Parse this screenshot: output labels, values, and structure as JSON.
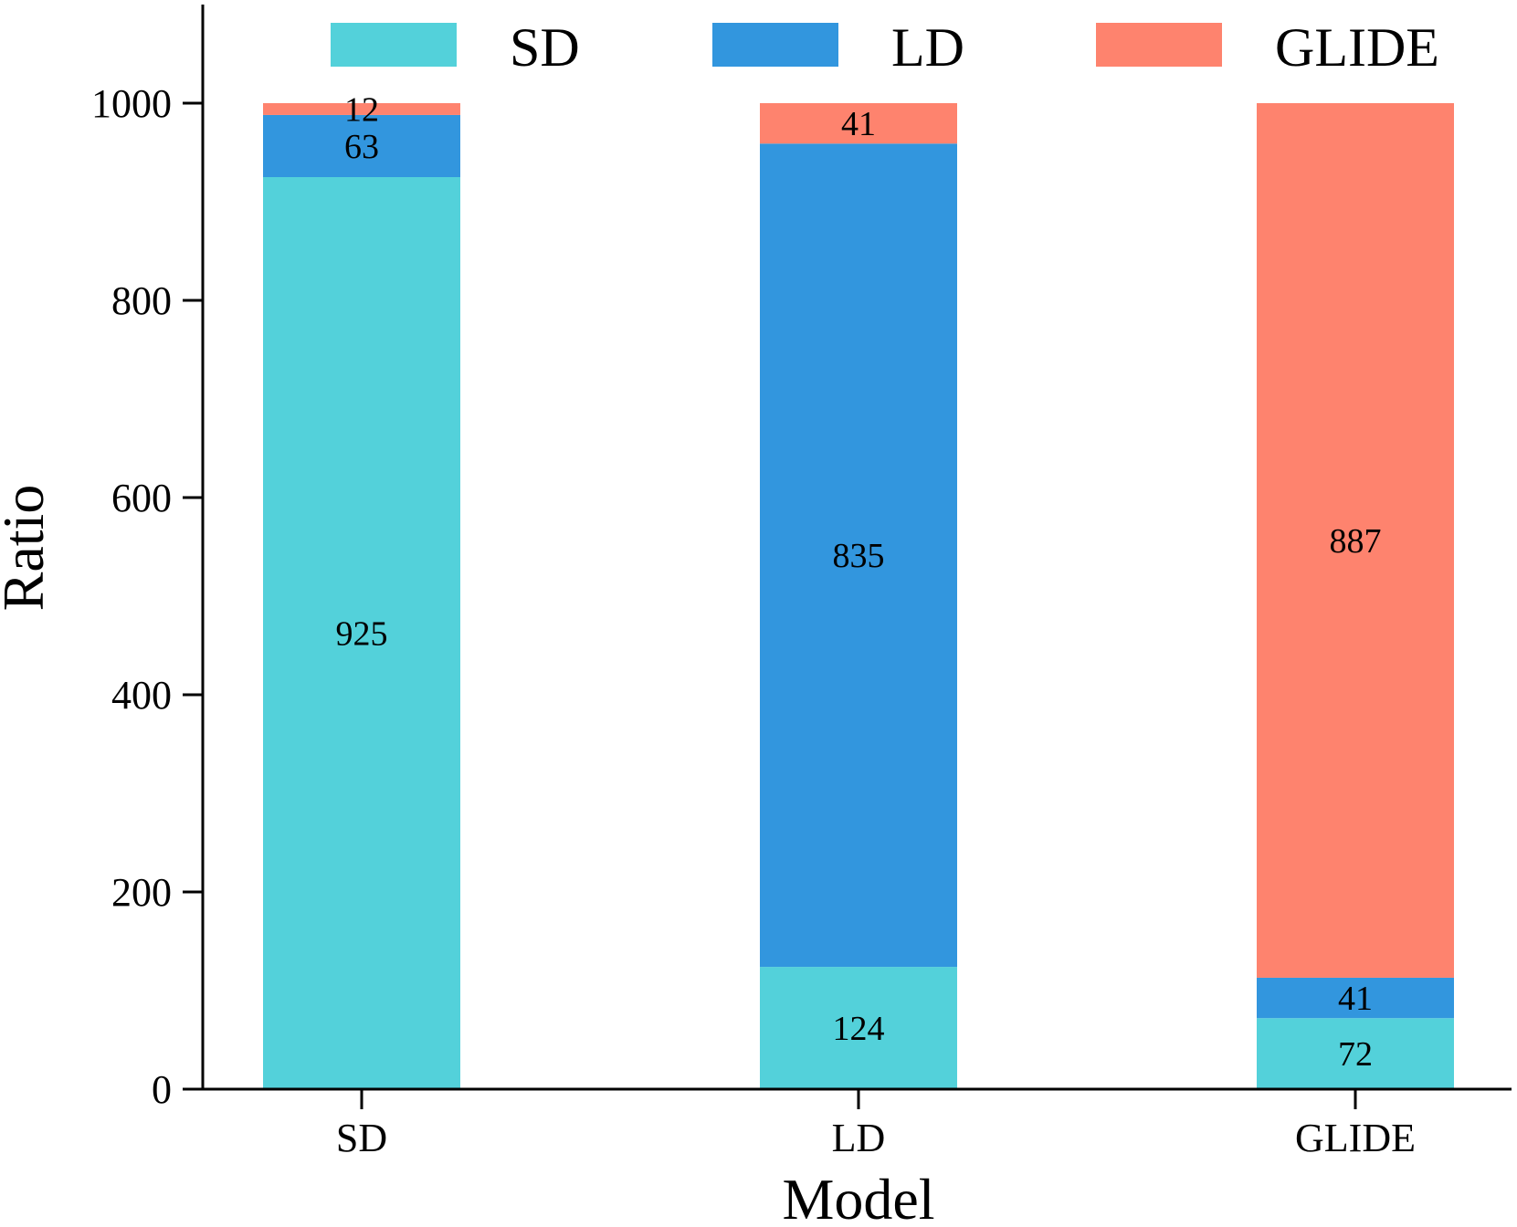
{
  "chart_data": {
    "type": "bar",
    "stacked": true,
    "categories": [
      "SD",
      "LD",
      "GLIDE"
    ],
    "series": [
      {
        "name": "SD",
        "color": "#53d1da",
        "values": [
          925,
          124,
          72
        ]
      },
      {
        "name": "LD",
        "color": "#3296de",
        "values": [
          63,
          835,
          41
        ]
      },
      {
        "name": "GLIDE",
        "color": "#fe836e",
        "values": [
          12,
          41,
          887
        ]
      }
    ],
    "xlabel": "Model",
    "ylabel": "Ratio",
    "ylim": [
      0,
      1100
    ],
    "yticks": [
      0,
      200,
      400,
      600,
      800,
      1000
    ],
    "grid": false,
    "legend": {
      "placement": "top",
      "orientation": "horizontal"
    }
  }
}
